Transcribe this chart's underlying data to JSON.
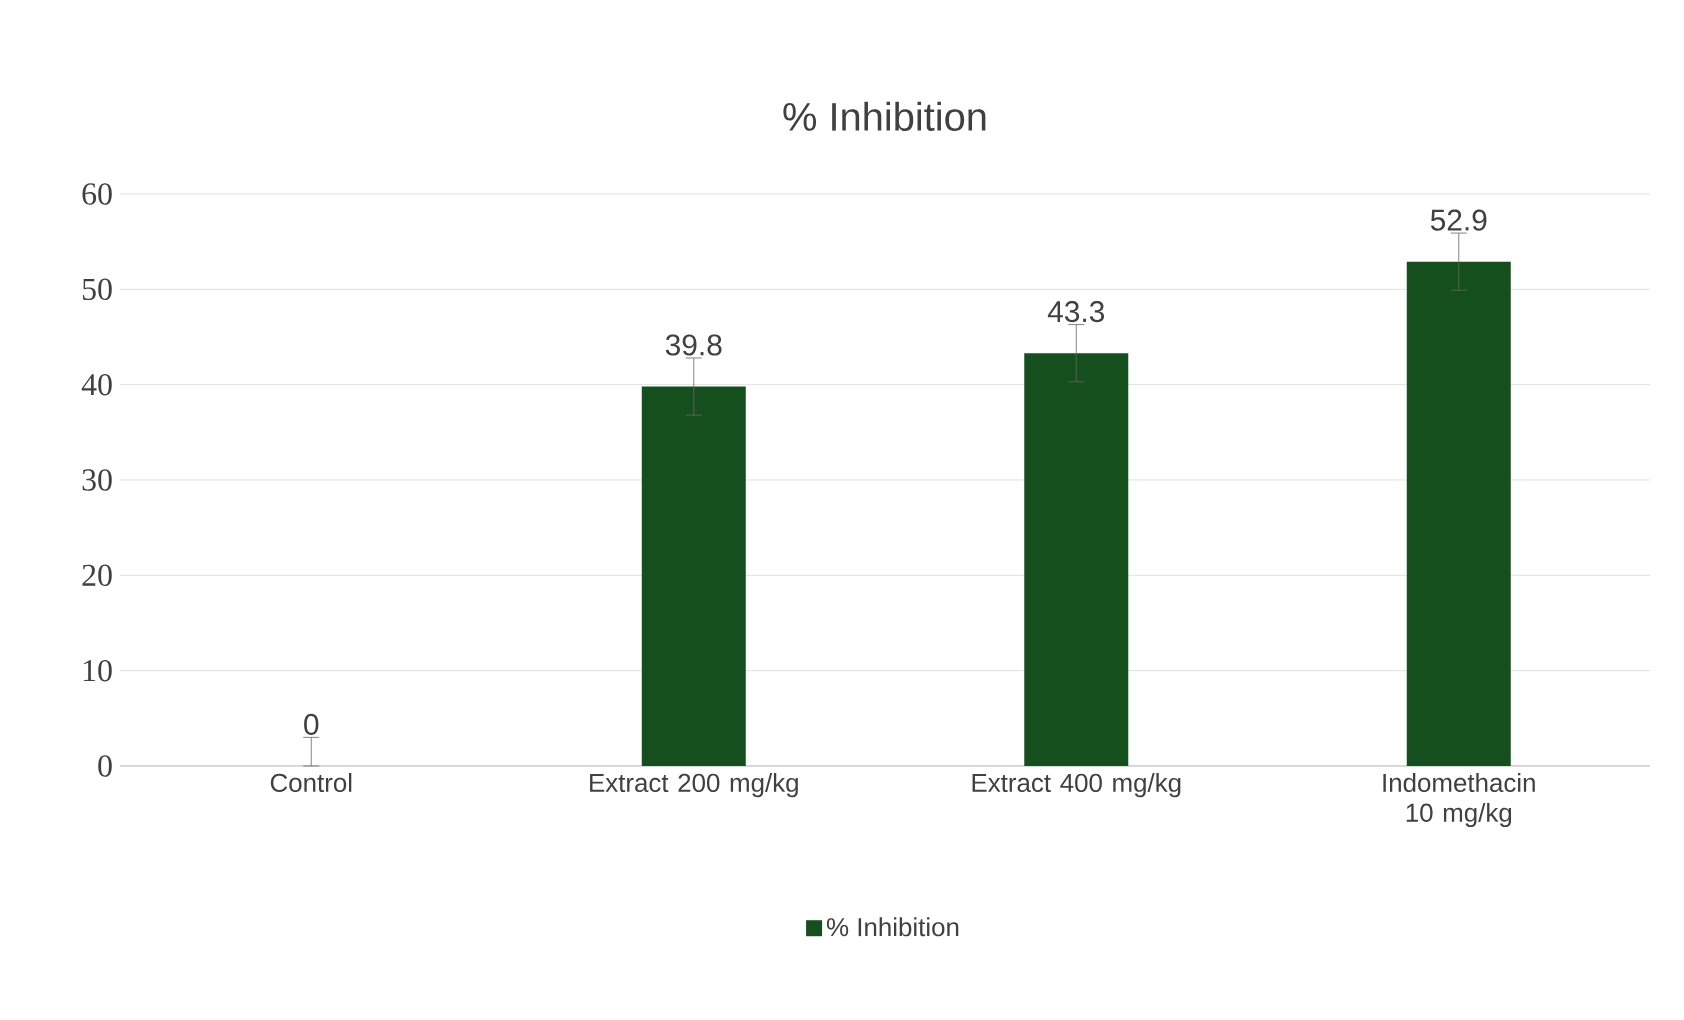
{
  "chart_data": {
    "type": "bar",
    "title": "% Inhibition",
    "categories": [
      "Control",
      "Extract 200 mg/kg",
      "Extract 400 mg/kg",
      "Indomethacin 10 mg/kg"
    ],
    "series": [
      {
        "name": "% Inhibition",
        "color": "#154f1e",
        "values": [
          0,
          39.8,
          43.3,
          52.9
        ],
        "errors": [
          [
            0,
            3
          ],
          3,
          3,
          3
        ]
      }
    ],
    "ylim": [
      0,
      60
    ],
    "yticks": [
      0,
      10,
      20,
      30,
      40,
      50,
      60
    ],
    "grid": "y",
    "legend": "bottom",
    "data_labels": true
  }
}
